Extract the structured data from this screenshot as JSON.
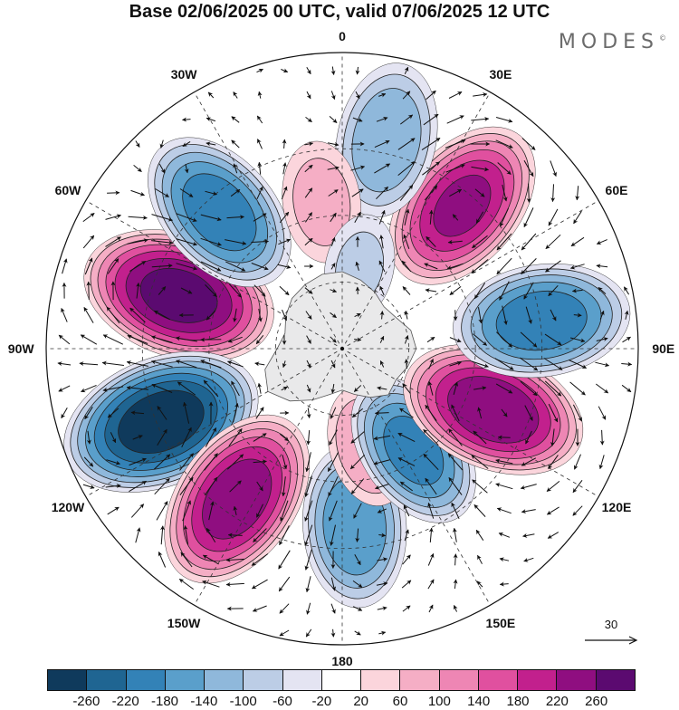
{
  "title": "Base 02/06/2025 00 UTC, valid 07/06/2025 12 UTC",
  "brand": "MODES",
  "brand_mark": "©",
  "longitude_labels": [
    {
      "text": "0",
      "lon": 0
    },
    {
      "text": "30E",
      "lon": 30
    },
    {
      "text": "60E",
      "lon": 60
    },
    {
      "text": "90E",
      "lon": 90
    },
    {
      "text": "120E",
      "lon": 120
    },
    {
      "text": "150E",
      "lon": 150
    },
    {
      "text": "180",
      "lon": 180
    },
    {
      "text": "150W",
      "lon": -150
    },
    {
      "text": "120W",
      "lon": -120
    },
    {
      "text": "90W",
      "lon": -90
    },
    {
      "text": "60W",
      "lon": -60
    },
    {
      "text": "30W",
      "lon": -30
    }
  ],
  "vector_reference": {
    "label": "30"
  },
  "colorbar": {
    "colors": [
      "#0f3a5c",
      "#1f6592",
      "#3382b7",
      "#5a9fcb",
      "#8fb8db",
      "#bccde6",
      "#e4e4f2",
      "#ffffff",
      "#fbd5dc",
      "#f5aec5",
      "#ee86b4",
      "#e0509f",
      "#c2208d",
      "#8f0e80",
      "#5b0a70"
    ],
    "tick_labels": [
      "-260",
      "-220",
      "-180",
      "-140",
      "-100",
      "-60",
      "-20",
      "20",
      "60",
      "100",
      "140",
      "180",
      "220",
      "260"
    ]
  },
  "anomaly_centers": [
    {
      "sign": "positive",
      "lon": -72,
      "r": 0.58,
      "value": 270
    },
    {
      "sign": "negative",
      "lon": -42,
      "r": 0.62,
      "value": -200
    },
    {
      "sign": "negative",
      "lon": -112,
      "r": 0.66,
      "value": -280
    },
    {
      "sign": "positive",
      "lon": -145,
      "r": 0.62,
      "value": 240
    },
    {
      "sign": "negative",
      "lon": 176,
      "r": 0.6,
      "value": -170
    },
    {
      "sign": "positive",
      "lon": 165,
      "r": 0.34,
      "value": 90
    },
    {
      "sign": "negative",
      "lon": 145,
      "r": 0.42,
      "value": -190
    },
    {
      "sign": "positive",
      "lon": 112,
      "r": 0.55,
      "value": 250
    },
    {
      "sign": "negative",
      "lon": 82,
      "r": 0.68,
      "value": -200
    },
    {
      "sign": "positive",
      "lon": 40,
      "r": 0.63,
      "value": 220
    },
    {
      "sign": "negative",
      "lon": 12,
      "r": 0.72,
      "value": -130
    },
    {
      "sign": "positive",
      "lon": -8,
      "r": 0.5,
      "value": 70
    },
    {
      "sign": "negative",
      "lon": 12,
      "r": 0.28,
      "value": -60
    }
  ]
}
